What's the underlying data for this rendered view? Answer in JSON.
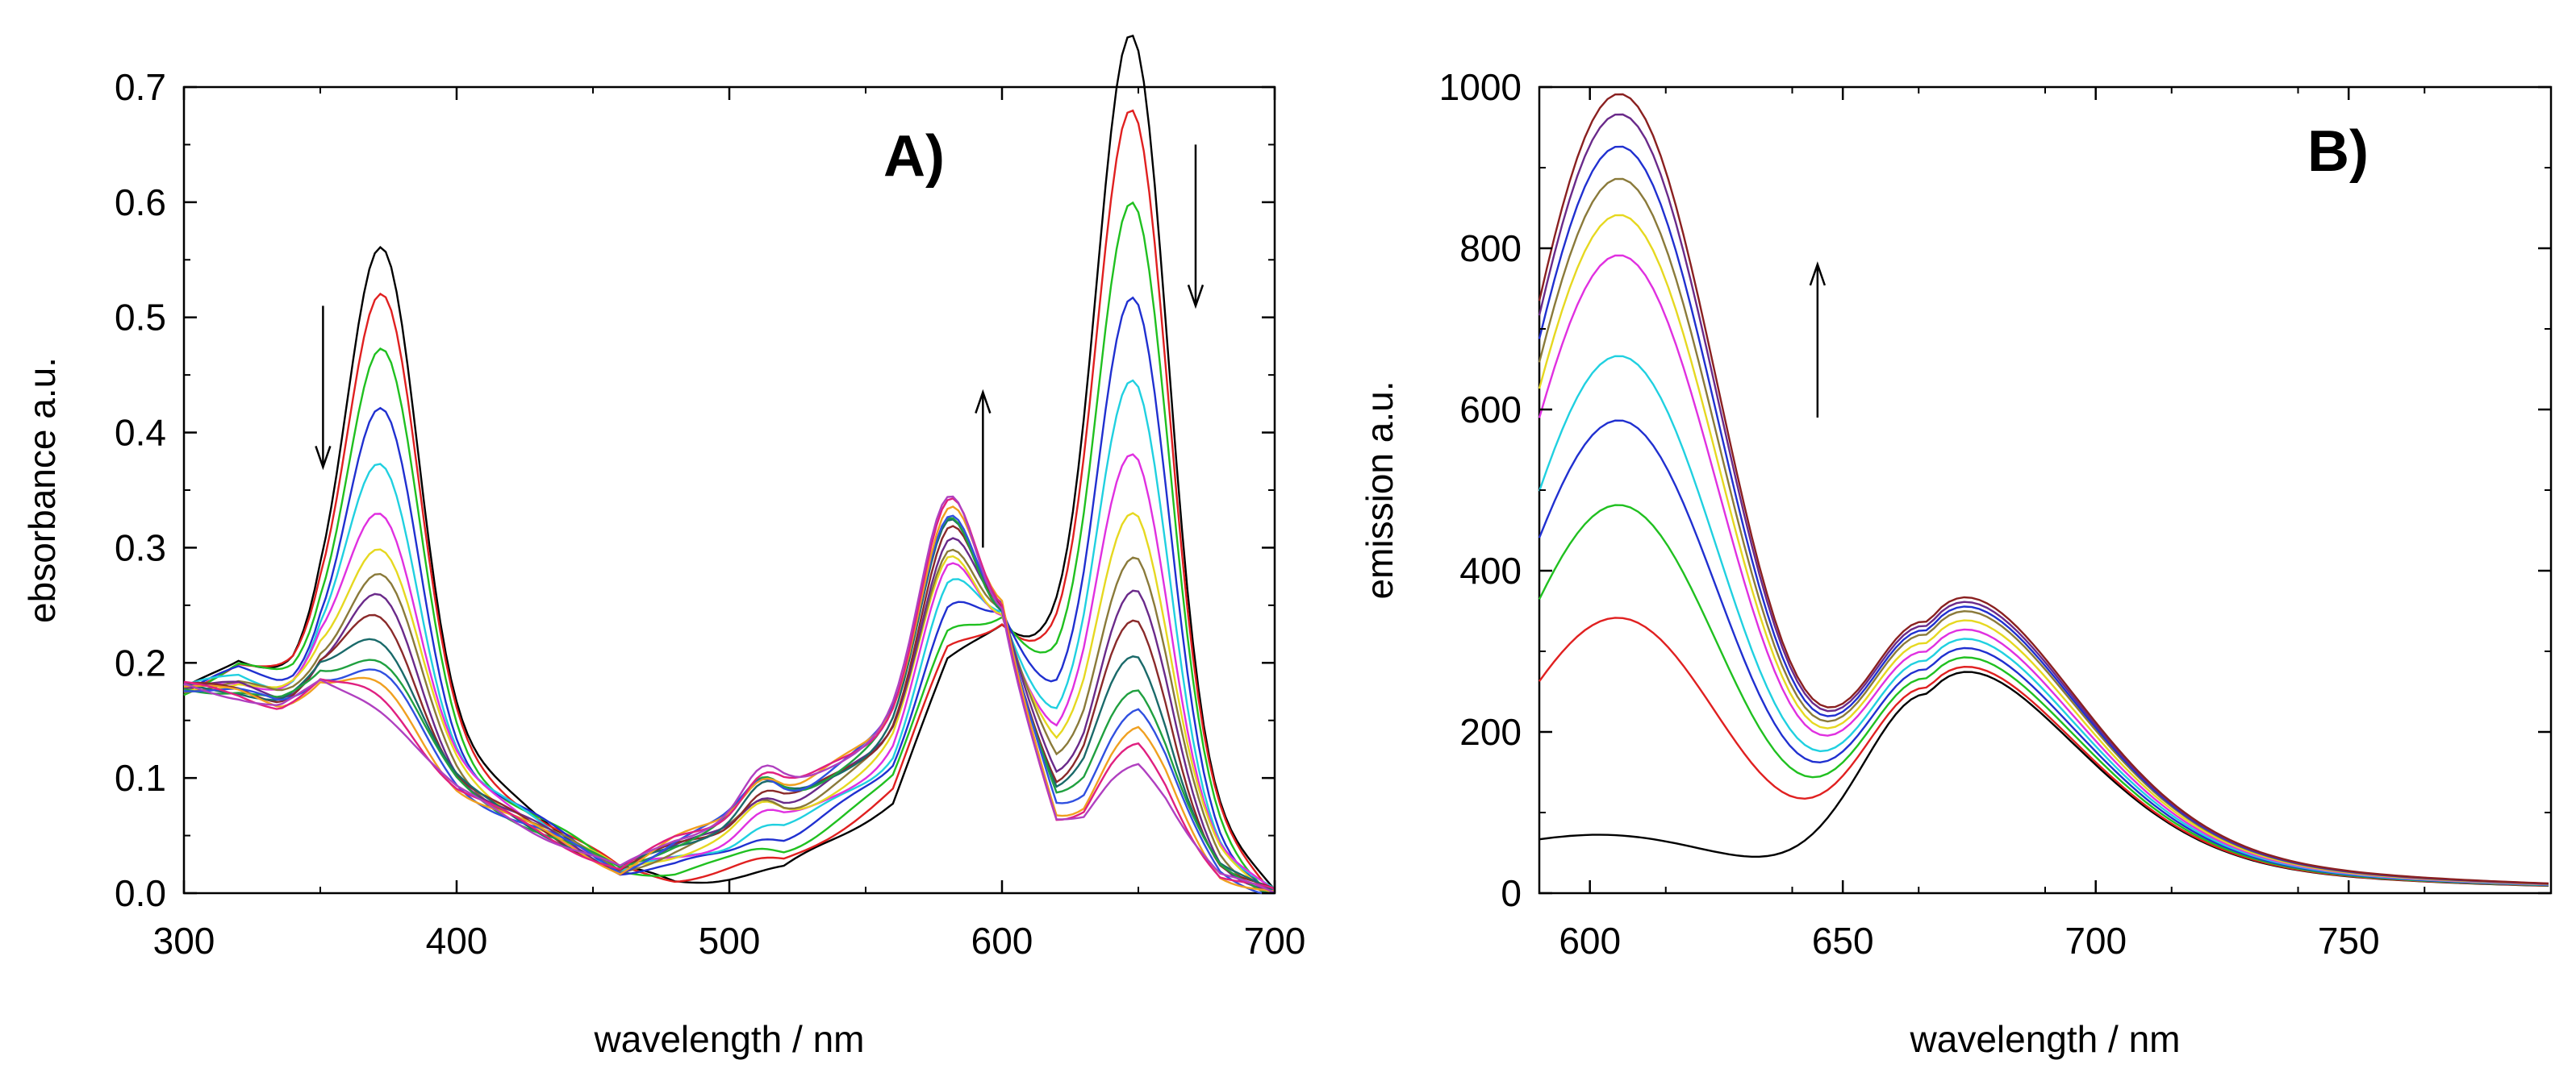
{
  "chart_data": [
    {
      "id": "A",
      "type": "line",
      "panel_label": "A)",
      "xlabel": "wavelength / nm",
      "ylabel": "ebsorbance a.u.",
      "xlim": [
        300,
        700
      ],
      "ylim": [
        0,
        0.7
      ],
      "x_ticks": [
        300,
        400,
        500,
        600,
        700
      ],
      "x_tick_labels": [
        "300",
        "400",
        "500",
        "600",
        "700"
      ],
      "y_ticks": [
        0.0,
        0.1,
        0.2,
        0.3,
        0.4,
        0.5,
        0.6,
        0.7
      ],
      "y_tick_labels": [
        "0.0",
        "0.1",
        "0.2",
        "0.3",
        "0.4",
        "0.5",
        "0.6",
        "0.7"
      ],
      "grid": false,
      "legend": "none",
      "annotations": [
        {
          "type": "arrow",
          "x": 351,
          "y_from": 0.51,
          "y_to": 0.37,
          "direction": "down"
        },
        {
          "type": "arrow",
          "x": 593,
          "y_from": 0.3,
          "y_to": 0.435,
          "direction": "up"
        },
        {
          "type": "arrow",
          "x": 671,
          "y_from": 0.65,
          "y_to": 0.51,
          "direction": "down"
        }
      ],
      "series": [
        {
          "name": "trace 1",
          "color": "#000000",
          "peak_fraction": 1.0
        },
        {
          "name": "trace 2",
          "color": "#e02020",
          "peak_fraction": 0.91
        },
        {
          "name": "trace 3",
          "color": "#20c020",
          "peak_fraction": 0.79
        },
        {
          "name": "trace 4",
          "color": "#2030d0",
          "peak_fraction": 0.66
        },
        {
          "name": "trace 5",
          "color": "#20d0e0",
          "peak_fraction": 0.55
        },
        {
          "name": "trace 6",
          "color": "#e030e0",
          "peak_fraction": 0.46
        },
        {
          "name": "trace 7",
          "color": "#e6d820",
          "peak_fraction": 0.39
        },
        {
          "name": "trace 8",
          "color": "#8a7a3a",
          "peak_fraction": 0.33
        },
        {
          "name": "trace 9",
          "color": "#6a2a8a",
          "peak_fraction": 0.28
        },
        {
          "name": "trace 10",
          "color": "#8a2a2a",
          "peak_fraction": 0.24
        },
        {
          "name": "trace 11",
          "color": "#1a6a6a",
          "peak_fraction": 0.2
        },
        {
          "name": "trace 12",
          "color": "#20a040",
          "peak_fraction": 0.16
        },
        {
          "name": "trace 13",
          "color": "#3050e0",
          "peak_fraction": 0.13
        },
        {
          "name": "trace 14",
          "color": "#f0a020",
          "peak_fraction": 0.1
        },
        {
          "name": "trace 15",
          "color": "#e02080",
          "peak_fraction": 0.08
        },
        {
          "name": "trace 16",
          "color": "#b040c0",
          "peak_fraction": 0.06
        }
      ],
      "spectrum_model": {
        "initial": {
          "baseline": [
            [
              300,
              0.175
            ],
            [
              320,
              0.205
            ],
            [
              340,
              0.19
            ],
            [
              350,
              0.2
            ],
            [
              460,
              0.02
            ],
            [
              480,
              0.01
            ],
            [
              520,
              0.02
            ],
            [
              560,
              0.08
            ],
            [
              580,
              0.2
            ],
            [
              600,
              0.235
            ],
            [
              615,
              0.21
            ],
            [
              700,
              0.0
            ]
          ],
          "bands": [
            [
              373,
              0.4,
              13
            ],
            [
              648,
              0.615,
              13
            ]
          ]
        },
        "final": {
          "baseline": [
            [
              300,
              0.18
            ],
            [
              320,
              0.17
            ],
            [
              335,
              0.16
            ],
            [
              345,
              0.17
            ],
            [
              350,
              0.175
            ],
            [
              400,
              0.085
            ],
            [
              460,
              0.02
            ],
            [
              480,
              0.05
            ],
            [
              500,
              0.07
            ],
            [
              520,
              0.09
            ],
            [
              540,
              0.12
            ],
            [
              560,
              0.15
            ],
            [
              600,
              0.23
            ],
            [
              620,
              0.05
            ],
            [
              630,
              0.04
            ],
            [
              640,
              0.06
            ],
            [
              650,
              0.075
            ],
            [
              660,
              0.06
            ],
            [
              680,
              0.01
            ],
            [
              700,
              0.0
            ]
          ],
          "bands": [
            [
              512,
              0.03,
              7
            ],
            [
              580,
              0.16,
              10
            ]
          ]
        }
      }
    },
    {
      "id": "B",
      "type": "line",
      "panel_label": "B)",
      "xlabel": "wavelength  / nm",
      "ylabel": "emission a.u.",
      "xlim": [
        590,
        790
      ],
      "ylim": [
        0,
        1000
      ],
      "x_ticks": [
        600,
        650,
        700,
        750
      ],
      "x_tick_labels": [
        "600",
        "650",
        "700",
        "750"
      ],
      "y_ticks": [
        0,
        200,
        400,
        600,
        800,
        1000
      ],
      "y_tick_labels": [
        "0",
        "200",
        "400",
        "600",
        "800",
        "1000"
      ],
      "grid": false,
      "legend": "none",
      "annotations": [
        {
          "type": "arrow",
          "x": 645,
          "y_from": 590,
          "y_to": 780,
          "direction": "up"
        }
      ],
      "series": [
        {
          "name": "trace 1",
          "color": "#000000",
          "peak605": 30,
          "peak665": 240
        },
        {
          "name": "trace 2",
          "color": "#e02020",
          "peak605": 300,
          "peak665": 245
        },
        {
          "name": "trace 3",
          "color": "#20c020",
          "peak605": 440,
          "peak665": 255
        },
        {
          "name": "trace 4",
          "color": "#2030d0",
          "peak605": 545,
          "peak665": 265
        },
        {
          "name": "trace 5",
          "color": "#20d0e0",
          "peak605": 625,
          "peak665": 275
        },
        {
          "name": "trace 6",
          "color": "#e030e0",
          "peak605": 750,
          "peak665": 285
        },
        {
          "name": "trace 7",
          "color": "#e6d820",
          "peak605": 800,
          "peak665": 295
        },
        {
          "name": "trace 8",
          "color": "#8a7a3a",
          "peak605": 845,
          "peak665": 305
        },
        {
          "name": "trace 9",
          "color": "#2030d0",
          "peak605": 885,
          "peak665": 310
        },
        {
          "name": "trace 10",
          "color": "#6a2a8a",
          "peak605": 925,
          "peak665": 315
        },
        {
          "name": "trace 11",
          "color": "#8a2020",
          "peak605": 950,
          "peak665": 320
        }
      ]
    }
  ]
}
